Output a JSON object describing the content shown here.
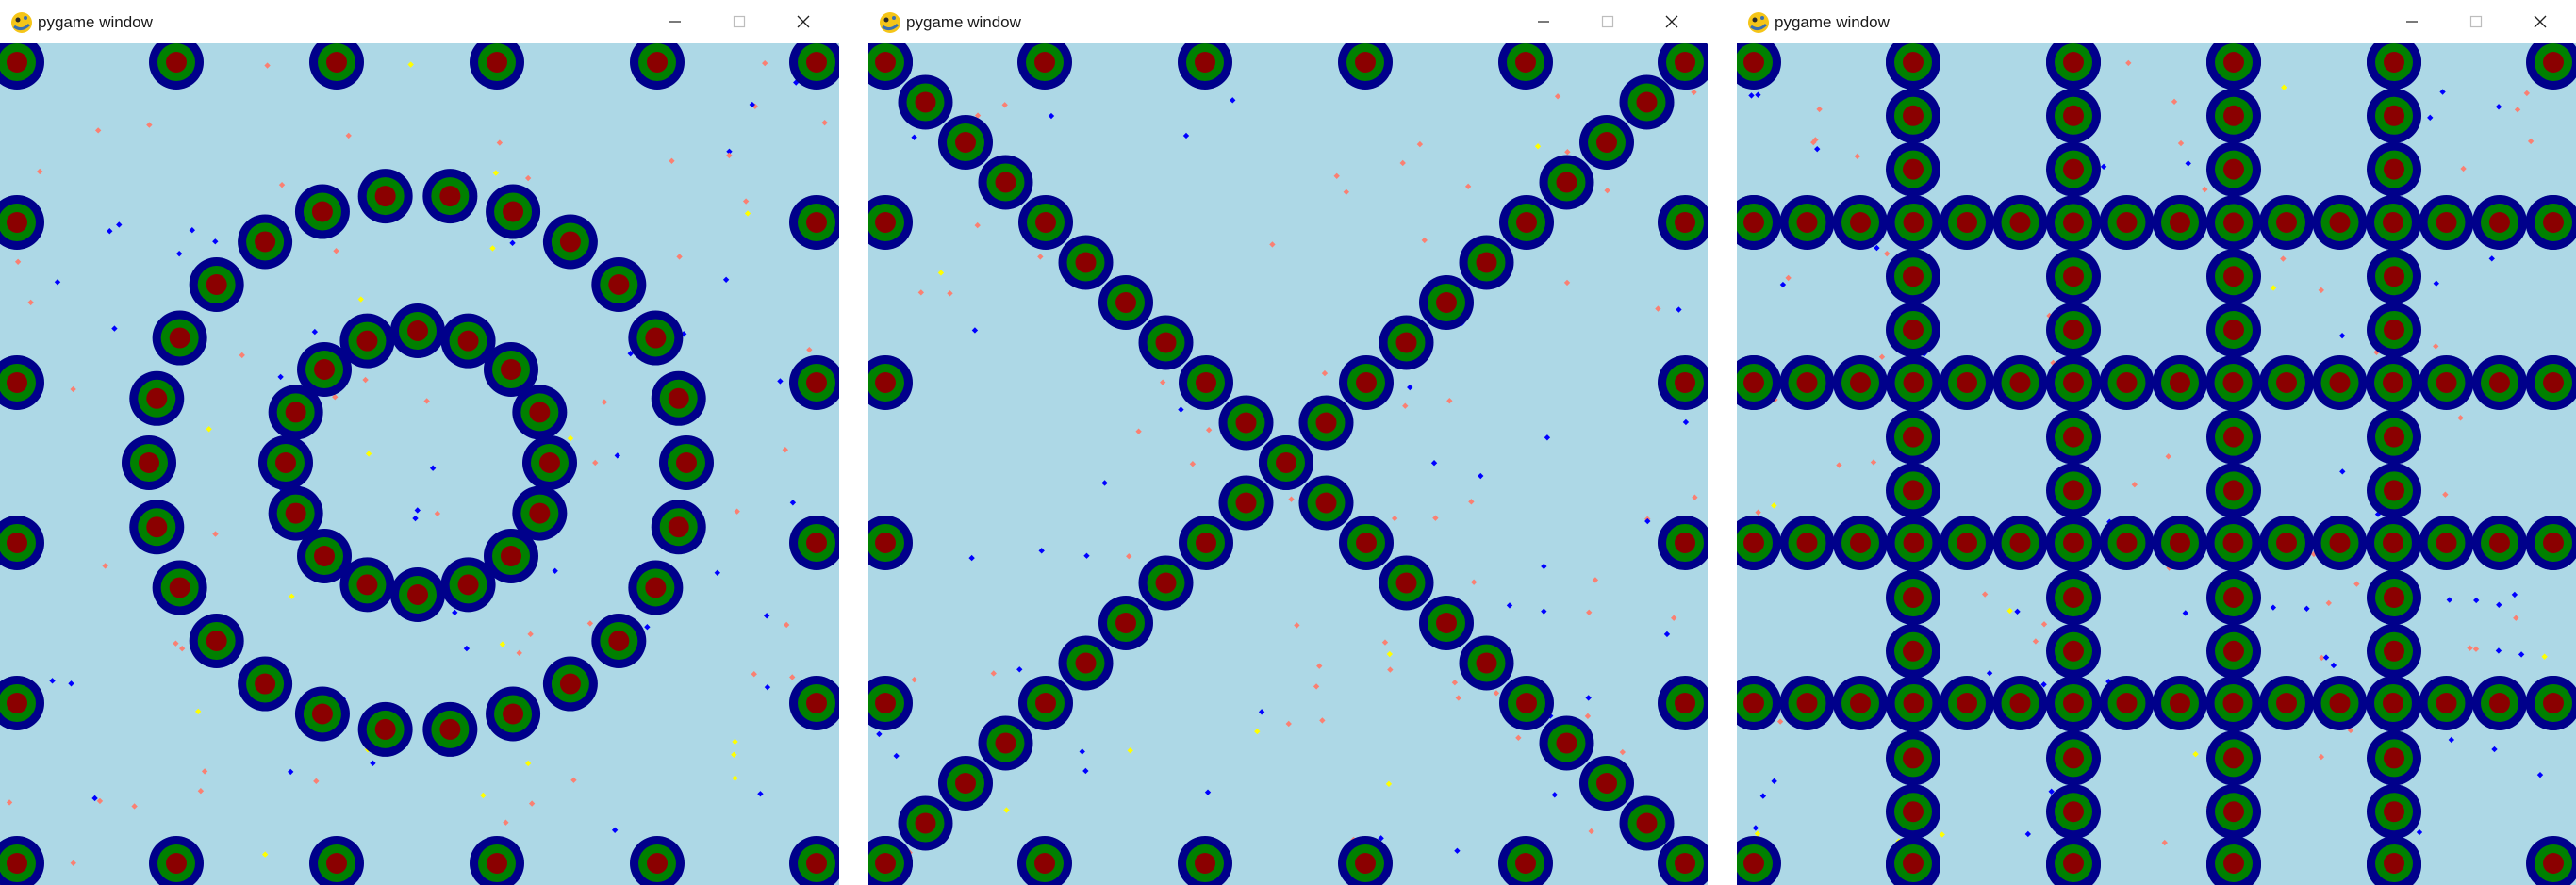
{
  "colors": {
    "background": "#add8e6",
    "ring_outer": "#00008b",
    "ring_middle": "#008000",
    "ring_core": "#8b0000",
    "particle_salmon": "#fa8072",
    "particle_blue": "#0000ff",
    "particle_yellow": "#ffff00"
  },
  "windows": [
    {
      "title": "pygame window",
      "pattern": "concentric-rings"
    },
    {
      "title": "pygame window",
      "pattern": "diagonal-cross"
    },
    {
      "title": "pygame window",
      "pattern": "grid-lattice"
    }
  ],
  "icons": {
    "app": "pygame-snake-icon",
    "minimize": "minimize-icon",
    "maximize": "maximize-icon",
    "close": "close-icon"
  }
}
